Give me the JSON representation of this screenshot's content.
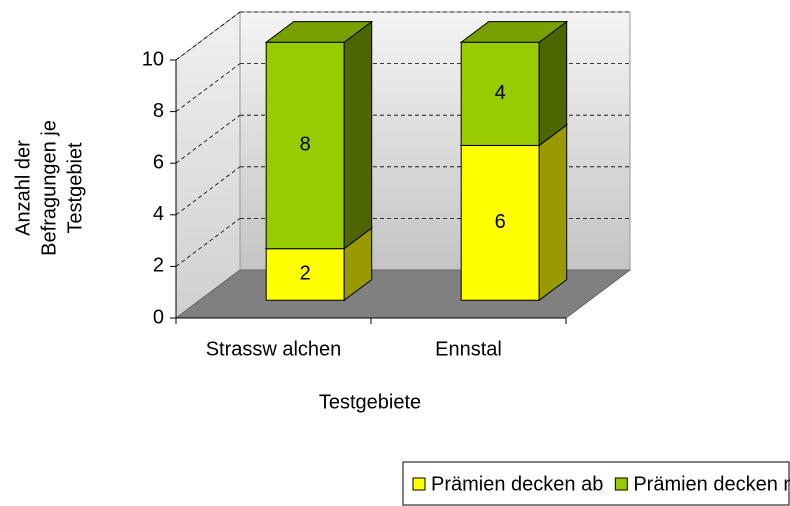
{
  "chart_data": {
    "type": "bar3d_stacked",
    "categories": [
      "Strassw alchen",
      "Ennstal"
    ],
    "series": [
      {
        "name": "Prämien decken ab",
        "color": "#ffff00",
        "side_color": "#999900",
        "top_color": "#cccc00",
        "values": [
          2,
          6
        ]
      },
      {
        "name": "Prämien decken nicht ab",
        "color": "#99cc00",
        "side_color": "#4d6600",
        "top_color": "#77a000",
        "values": [
          8,
          4
        ]
      }
    ],
    "y_label": [
      "Anzahl der",
      "Befragungen je",
      "Testgebiet"
    ],
    "x_label": "Testgebiete",
    "ylim": [
      0,
      10
    ],
    "yticks": [
      0,
      2,
      4,
      6,
      8,
      10
    ],
    "grid": true,
    "legend": "bottom-right"
  }
}
